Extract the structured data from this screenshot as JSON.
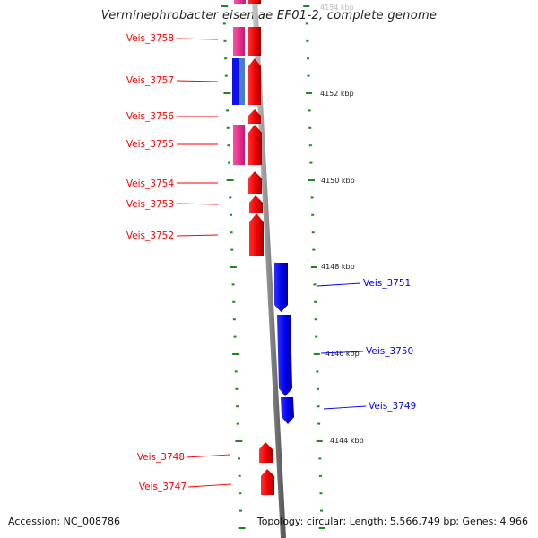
{
  "title": "Verminephrobacter eiseniae EF01-2, complete genome",
  "footer": {
    "accession": "Accession: NC_008786",
    "topology": "Topology: circular; Length: 5,566,749 bp; Genes: 4,966"
  },
  "kbp_labels": [
    "4154 kbp",
    "4152 kbp",
    "4150 kbp",
    "4148 kbp",
    "4146 kbp",
    "4144 kbp"
  ],
  "genes_left": [
    "Veis_3758",
    "Veis_3757",
    "Veis_3756",
    "Veis_3755",
    "Veis_3754",
    "Veis_3753",
    "Veis_3752",
    "Veis_3748",
    "Veis_3747"
  ],
  "genes_right": [
    "Veis_3751",
    "Veis_3750",
    "Veis_3749"
  ],
  "colors": {
    "reverse_strand_gene": "#ff0000",
    "forward_strand_gene": "#0000ff",
    "cog_magenta": "#e8308a",
    "cog_steelblue": "#4a7fc0",
    "tick": "#1a8a1a",
    "backbone": "#909090"
  }
}
